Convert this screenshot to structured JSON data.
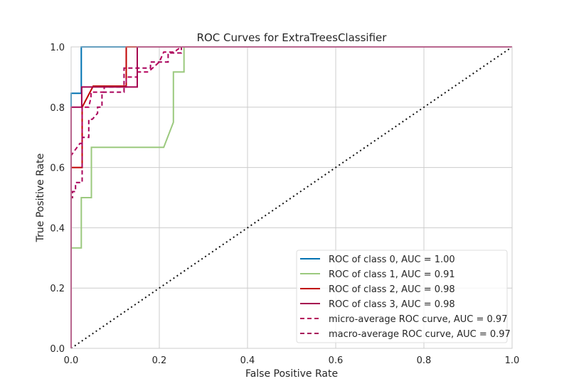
{
  "chart_data": {
    "type": "line",
    "title": "ROC Curves for ExtraTreesClassifier",
    "xlabel": "False Positive Rate",
    "ylabel": "True Positive Rate",
    "xlim": [
      0,
      1
    ],
    "ylim": [
      0,
      1
    ],
    "xticks": [
      "0.0",
      "0.2",
      "0.4",
      "0.6",
      "0.8",
      "1.0"
    ],
    "yticks": [
      "0.0",
      "0.2",
      "0.4",
      "0.6",
      "0.8",
      "1.0"
    ],
    "grid": true,
    "legend_position": "bottom-right",
    "series": [
      {
        "name": "ROC of class 0, AUC = 1.00",
        "color": "#0072B2",
        "dash": "solid",
        "x": [
          0,
          0,
          0.023,
          0.023,
          0.023,
          1
        ],
        "y": [
          0,
          0.846,
          0.846,
          1.0,
          1.0,
          1.0
        ]
      },
      {
        "name": "ROC of class 1, AUC = 0.91",
        "color": "#9BC97E",
        "dash": "solid",
        "x": [
          0,
          0,
          0.023,
          0.023,
          0.046,
          0.046,
          0.21,
          0.232,
          0.232,
          0.256,
          0.256,
          1
        ],
        "y": [
          0,
          0.333,
          0.333,
          0.5,
          0.5,
          0.667,
          0.667,
          0.75,
          0.917,
          0.917,
          1.0,
          1.0
        ]
      },
      {
        "name": "ROC of class 2, AUC = 0.98",
        "color": "#C00000",
        "dash": "solid",
        "x": [
          0,
          0,
          0.025,
          0.025,
          0.05,
          0.125,
          0.125,
          1
        ],
        "y": [
          0,
          0.6,
          0.6,
          0.8,
          0.87,
          0.87,
          1.0,
          1.0
        ]
      },
      {
        "name": "ROC of class 3, AUC = 0.98",
        "color": "#A50050",
        "dash": "solid",
        "x": [
          0,
          0,
          0.024,
          0.024,
          0.15,
          0.15,
          1
        ],
        "y": [
          0,
          0.8,
          0.8,
          0.867,
          0.867,
          1.0,
          1.0
        ]
      },
      {
        "name": "micro-average ROC curve, AUC = 0.97",
        "color": "#B5005B",
        "dash": "dashed",
        "x": [
          0,
          0,
          0.02,
          0.025,
          0.025,
          0.04,
          0.045,
          0.045,
          0.075,
          0.075,
          0.125,
          0.125,
          0.15,
          0.15,
          0.175,
          0.2,
          0.21,
          0.235,
          0.24,
          0.25,
          1.0
        ],
        "y": [
          0,
          0.64,
          0.68,
          0.68,
          0.8,
          0.8,
          0.833,
          0.85,
          0.85,
          0.867,
          0.867,
          0.9,
          0.9,
          0.917,
          0.917,
          0.95,
          0.983,
          0.983,
          0.99,
          1.0,
          1.0
        ]
      },
      {
        "name": "macro-average ROC curve, AUC = 0.97",
        "color": "#A8005A",
        "dash": "dashed",
        "x": [
          0,
          0,
          0.003,
          0.003,
          0.01,
          0.01,
          0.025,
          0.025,
          0.04,
          0.04,
          0.048,
          0.06,
          0.06,
          0.07,
          0.07,
          0.12,
          0.12,
          0.18,
          0.18,
          0.22,
          0.22,
          0.25,
          0.25,
          1.0
        ],
        "y": [
          0,
          0.5,
          0.5,
          0.52,
          0.52,
          0.55,
          0.55,
          0.7,
          0.7,
          0.76,
          0.76,
          0.78,
          0.8,
          0.8,
          0.85,
          0.85,
          0.93,
          0.93,
          0.95,
          0.95,
          0.98,
          0.98,
          1.0,
          1.0
        ]
      }
    ],
    "reference_line": {
      "color": "#111111",
      "dash": "dotted",
      "x": [
        0,
        1
      ],
      "y": [
        0,
        1
      ]
    }
  }
}
